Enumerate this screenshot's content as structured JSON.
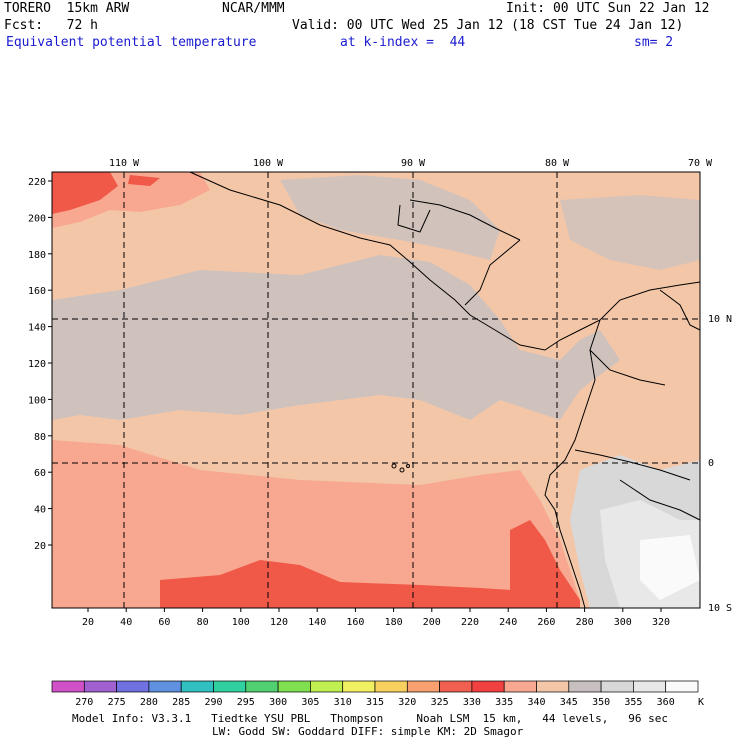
{
  "header": {
    "model": "TORERO  15km ARW",
    "center": "NCAR/MMM",
    "init": "Init: 00 UTC Sun 22 Jan 12",
    "fcst": "Fcst:   72 h",
    "valid": "Valid: 00 UTC Wed 25 Jan 12 (18 CST Tue 24 Jan 12)",
    "field": "Equivalent potential temperature",
    "level": "at k-index =  44",
    "smooth": "sm= 2",
    "field_color": "#1a1ad0"
  },
  "map": {
    "lon_labels": [
      "110 W",
      "100 W",
      "90 W",
      "80 W",
      "70 W"
    ],
    "lat_labels": [
      "10 N",
      "0",
      "10 S"
    ],
    "y_ticks": [
      "220",
      "200",
      "180",
      "160",
      "140",
      "120",
      "100",
      "80",
      "60",
      "40",
      "20"
    ],
    "x_ticks": [
      "20",
      "40",
      "60",
      "80",
      "100",
      "120",
      "140",
      "160",
      "180",
      "200",
      "220",
      "240",
      "260",
      "280",
      "300",
      "320"
    ],
    "background_color": "#f4c6a8"
  },
  "colorbar": {
    "labels": [
      "270",
      "275",
      "280",
      "285",
      "290",
      "295",
      "300",
      "305",
      "310",
      "315",
      "320",
      "325",
      "330",
      "335",
      "340",
      "345",
      "350",
      "355",
      "360"
    ],
    "unit": "K",
    "colors": [
      "#d050c8",
      "#a060d0",
      "#7070e0",
      "#6090e0",
      "#30c0c0",
      "#30d0a0",
      "#50d070",
      "#80e050",
      "#c0f050",
      "#f0f060",
      "#f8d060",
      "#f8a070",
      "#f06050",
      "#f04040",
      "#f8a890",
      "#f4c6a8",
      "#c8c0c0",
      "#d8d8d8",
      "#e8e8e8",
      "#fafafa"
    ]
  },
  "footer": {
    "line1": "Model Info: V3.3.1   Tiedtke YSU PBL   Thompson     Noah LSM  15 km,   44 levels,   96 sec",
    "line2": "LW: Godd SW: Goddard DIFF: simple KM: 2D Smagor"
  }
}
